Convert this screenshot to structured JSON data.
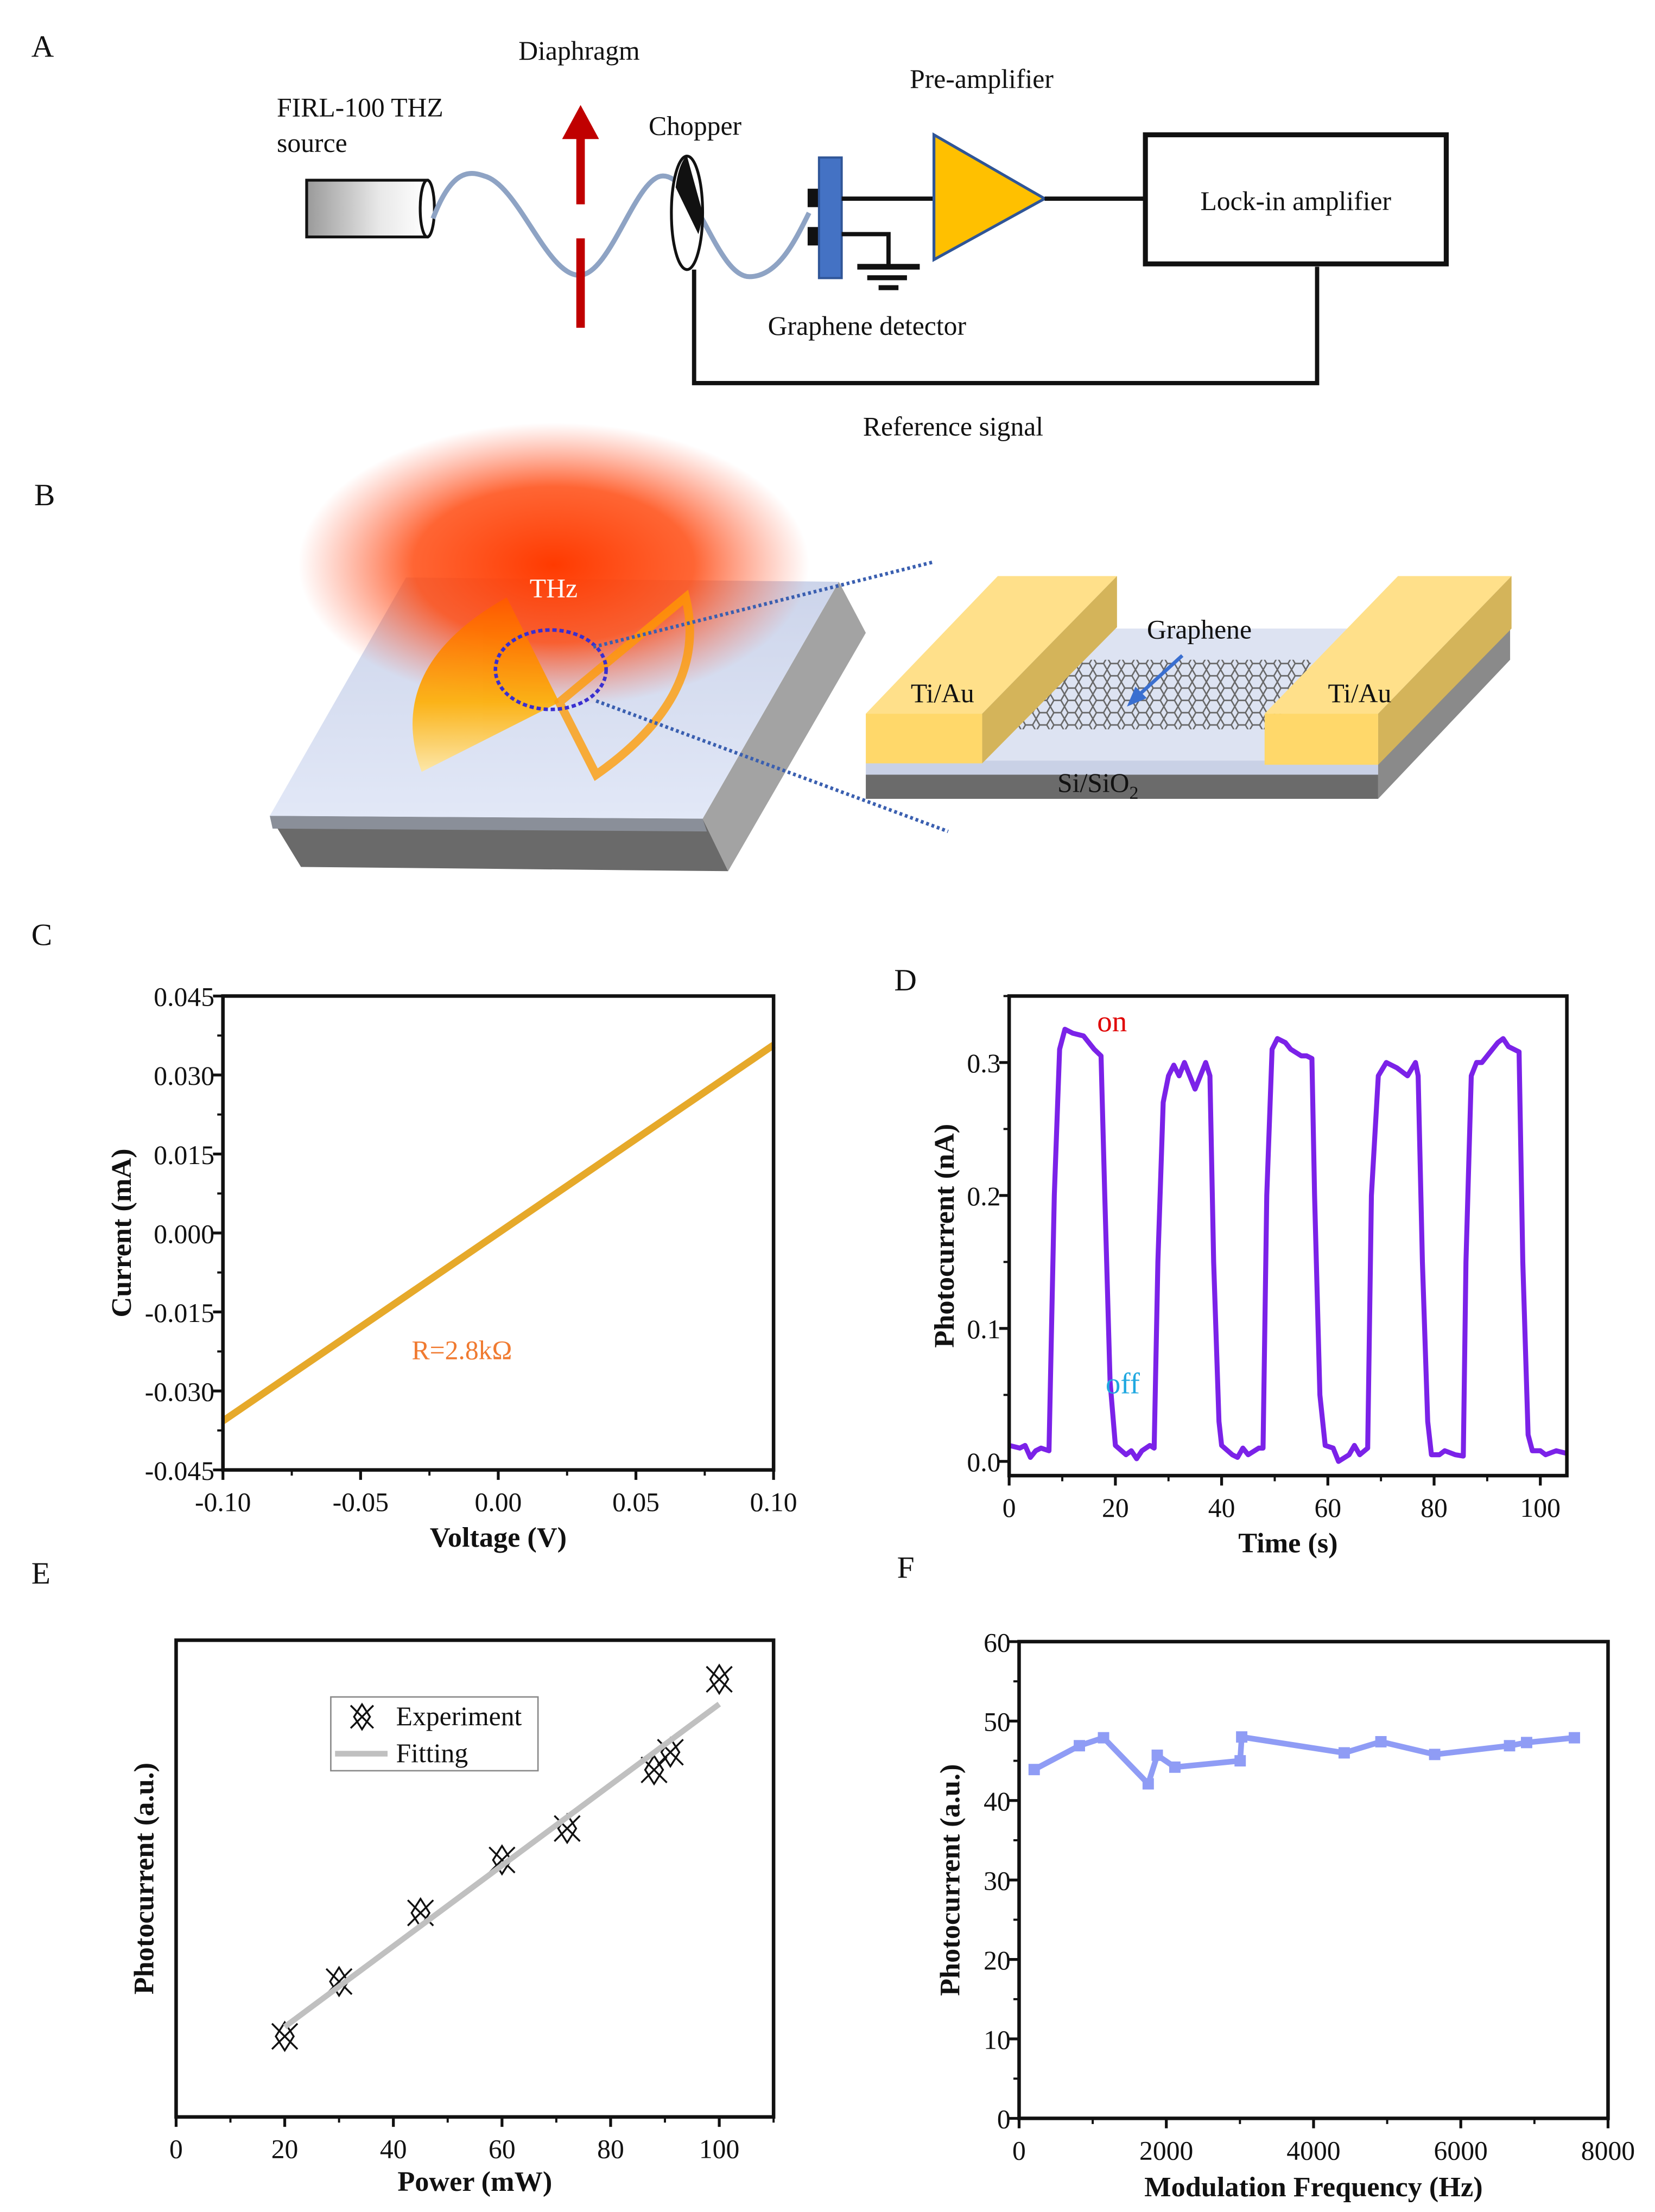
{
  "panels": {
    "a": "A",
    "b": "B",
    "c": "C",
    "d": "D",
    "e": "E",
    "f": "F"
  },
  "diagram_a": {
    "source_line1": "FIRL-100 THZ",
    "source_line2": "source",
    "diaphragm": "Diaphragm",
    "chopper": "Chopper",
    "preamp": "Pre-amplifier",
    "lockin": "Lock-in amplifier",
    "detector": "Graphene detector",
    "reference": "Reference signal",
    "colors": {
      "diaphragm": "#c00000",
      "detector": "#4472c4",
      "preamp": "#ffc000",
      "wave": "#8ea3c4"
    }
  },
  "diagram_b": {
    "thz": "THz",
    "graphene": "Graphene",
    "electrode_left": "Ti/Au",
    "electrode_right": "Ti/Au",
    "substrate": "Si/SiO",
    "substrate_sub": "2",
    "colors": {
      "gold": "#ffe08a",
      "beam": "#ff4010",
      "zoom_lines": "#3a5fb0"
    }
  },
  "chart_data": [
    {
      "id": "c",
      "type": "line",
      "xlabel": "Voltage (V)",
      "ylabel": "Current (mA)",
      "xlim": [
        -0.1,
        0.1
      ],
      "ylim": [
        -0.045,
        0.045
      ],
      "xticks": [
        -0.1,
        -0.05,
        0,
        0.05,
        0.1
      ],
      "xtick_labels": [
        "-0.10",
        "-0.05",
        "0.00",
        "0.05",
        "0.10"
      ],
      "yticks": [
        0.045,
        0.03,
        0.015,
        0,
        -0.015,
        -0.03,
        -0.045
      ],
      "ytick_labels": [
        "0.045",
        "0.030",
        "0.015",
        "0.000",
        "-0.015",
        "-0.030",
        "-0.045"
      ],
      "series": [
        {
          "name": "I-V",
          "color": "#e6a92a",
          "x": [
            -0.1,
            0.1
          ],
          "y": [
            -0.0357,
            0.0357
          ]
        }
      ],
      "annotations": [
        {
          "text": "R=2.8kΩ",
          "color": "#f07a30"
        }
      ]
    },
    {
      "id": "d",
      "type": "line",
      "xlabel": "Time (s)",
      "ylabel": "Photocurrent (nA)",
      "xlim": [
        0,
        105
      ],
      "ylim": [
        -0.0107,
        0.35
      ],
      "xticks": [
        0,
        20,
        40,
        60,
        80,
        100
      ],
      "xtick_labels": [
        "0",
        "20",
        "40",
        "60",
        "80",
        "100"
      ],
      "yticks": [
        0,
        0.1,
        0.2,
        0.3
      ],
      "ytick_labels": [
        "0.0",
        "0.1",
        "0.2",
        "0.3"
      ],
      "series": [
        {
          "name": "photocurrent",
          "color": "#7b22e8",
          "points": [
            [
              0,
              0.012
            ],
            [
              2,
              0.01
            ],
            [
              3,
              0.012
            ],
            [
              4,
              0.003
            ],
            [
              5,
              0.008
            ],
            [
              6,
              0.01
            ],
            [
              7.5,
              0.008
            ],
            [
              8.5,
              0.2
            ],
            [
              9.5,
              0.31
            ],
            [
              10.5,
              0.325
            ],
            [
              12,
              0.322
            ],
            [
              14,
              0.32
            ],
            [
              15,
              0.315
            ],
            [
              16,
              0.31
            ],
            [
              17.3,
              0.305
            ],
            [
              18,
              0.2
            ],
            [
              19,
              0.06
            ],
            [
              20,
              0.012
            ],
            [
              22,
              0.005
            ],
            [
              23,
              0.008
            ],
            [
              24,
              0.002
            ],
            [
              25,
              0.008
            ],
            [
              26.5,
              0.012
            ],
            [
              27.3,
              0.01
            ],
            [
              28,
              0.15
            ],
            [
              29,
              0.27
            ],
            [
              30,
              0.29
            ],
            [
              31,
              0.298
            ],
            [
              32,
              0.29
            ],
            [
              33,
              0.3
            ],
            [
              34,
              0.29
            ],
            [
              35,
              0.28
            ],
            [
              36,
              0.29
            ],
            [
              37,
              0.3
            ],
            [
              37.8,
              0.29
            ],
            [
              38.5,
              0.15
            ],
            [
              39.5,
              0.03
            ],
            [
              40,
              0.012
            ],
            [
              42,
              0.005
            ],
            [
              43,
              0.003
            ],
            [
              44,
              0.01
            ],
            [
              45,
              0.005
            ],
            [
              47,
              0.01
            ],
            [
              47.8,
              0.01
            ],
            [
              48.5,
              0.2
            ],
            [
              49.5,
              0.31
            ],
            [
              50.5,
              0.318
            ],
            [
              52,
              0.315
            ],
            [
              53,
              0.31
            ],
            [
              55,
              0.305
            ],
            [
              56,
              0.305
            ],
            [
              57,
              0.303
            ],
            [
              57.5,
              0.2
            ],
            [
              58.5,
              0.05
            ],
            [
              59.5,
              0.012
            ],
            [
              61,
              0.01
            ],
            [
              62,
              0.0
            ],
            [
              64,
              0.005
            ],
            [
              65,
              0.012
            ],
            [
              66,
              0.005
            ],
            [
              67.5,
              0.01
            ],
            [
              68.2,
              0.2
            ],
            [
              69.5,
              0.29
            ],
            [
              71,
              0.3
            ],
            [
              73,
              0.296
            ],
            [
              75,
              0.29
            ],
            [
              76.5,
              0.3
            ],
            [
              77,
              0.29
            ],
            [
              77.8,
              0.15
            ],
            [
              78.8,
              0.03
            ],
            [
              79.5,
              0.005
            ],
            [
              81,
              0.005
            ],
            [
              82,
              0.008
            ],
            [
              84,
              0.005
            ],
            [
              85.5,
              0.004
            ],
            [
              86,
              0.15
            ],
            [
              87,
              0.29
            ],
            [
              88,
              0.3
            ],
            [
              89,
              0.3
            ],
            [
              90,
              0.305
            ],
            [
              91,
              0.31
            ],
            [
              92,
              0.315
            ],
            [
              93,
              0.318
            ],
            [
              94,
              0.312
            ],
            [
              95,
              0.31
            ],
            [
              96,
              0.308
            ],
            [
              96.7,
              0.15
            ],
            [
              97.7,
              0.02
            ],
            [
              98.5,
              0.008
            ],
            [
              100,
              0.008
            ],
            [
              101,
              0.005
            ],
            [
              103,
              0.008
            ],
            [
              105,
              0.006
            ]
          ]
        }
      ],
      "annotations": [
        {
          "text": "on",
          "color": "#e00000"
        },
        {
          "text": "off",
          "color": "#20a8e0"
        }
      ]
    },
    {
      "id": "e",
      "type": "scatter",
      "xlabel": "Power (mW)",
      "ylabel": "Photocurrent (a.u.)",
      "xlim": [
        0,
        110
      ],
      "ylim": [
        0,
        100
      ],
      "xticks": [
        0,
        20,
        40,
        60,
        80,
        100
      ],
      "xtick_labels": [
        "0",
        "20",
        "40",
        "60",
        "80",
        "100"
      ],
      "yticks": [],
      "ytick_labels": [],
      "legend": "top-left",
      "series": [
        {
          "name": "Experiment",
          "type": "scatter",
          "color": "#111111",
          "x": [
            20,
            30,
            45,
            60,
            72,
            88,
            91,
            100
          ],
          "y": [
            16.9,
            28.4,
            42.8,
            53.9,
            60.5,
            72.8,
            76.5,
            91.8
          ]
        },
        {
          "name": "Fitting",
          "type": "line",
          "color": "#c0c0c0",
          "x": [
            20,
            100
          ],
          "y": [
            18.9,
            86.6
          ]
        }
      ]
    },
    {
      "id": "f",
      "type": "line",
      "xlabel": "Modulation Frequency (Hz)",
      "ylabel": "Photocurrent (a.u.)",
      "xlim": [
        0,
        8000
      ],
      "ylim": [
        0,
        60
      ],
      "xticks": [
        0,
        2000,
        4000,
        6000,
        8000
      ],
      "xtick_labels": [
        "0",
        "2000",
        "4000",
        "6000",
        "8000"
      ],
      "yticks": [
        0,
        10,
        20,
        30,
        40,
        50,
        60
      ],
      "ytick_labels": [
        "0",
        "10",
        "20",
        "30",
        "40",
        "50",
        "60"
      ],
      "series": [
        {
          "name": "photocurrent",
          "color": "#8f9cf5",
          "marker": "square",
          "x": [
            205,
            819,
            1147,
            1754,
            1877,
            2116,
            3003,
            3024,
            4416,
            4915,
            5645,
            6662,
            6894,
            7543
          ],
          "y": [
            43.9,
            46.9,
            47.9,
            42.1,
            45.7,
            44.2,
            45.0,
            48.0,
            46.0,
            47.4,
            45.8,
            46.9,
            47.3,
            47.9
          ]
        }
      ]
    }
  ]
}
